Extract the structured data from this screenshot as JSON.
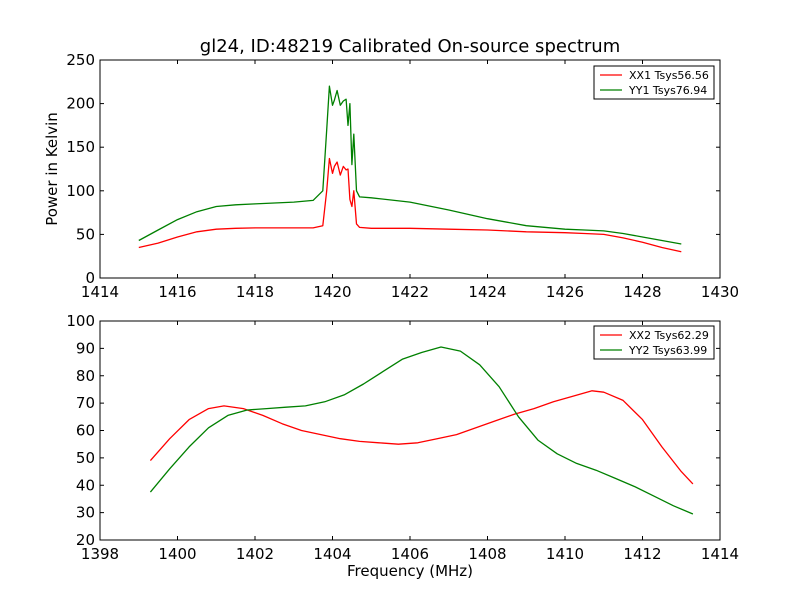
{
  "chart_data": [
    {
      "type": "line",
      "title": "gl24, ID:48219 Calibrated On-source spectrum",
      "xlabel": "",
      "ylabel": "Power in Kelvin",
      "xlim": [
        1414,
        1430
      ],
      "ylim": [
        0,
        250
      ],
      "xticks": [
        "1414",
        "1416",
        "1418",
        "1420",
        "1422",
        "1424",
        "1426",
        "1428",
        "1430"
      ],
      "yticks": [
        "0",
        "50",
        "100",
        "150",
        "200",
        "250"
      ],
      "grid": false,
      "legend_position": "top-right",
      "series": [
        {
          "name": "XX1 Tsys56.56",
          "color": "#ff0000",
          "x": [
            1415.0,
            1415.5,
            1416.0,
            1416.5,
            1417.0,
            1417.5,
            1418.0,
            1418.5,
            1419.0,
            1419.5,
            1419.75,
            1419.85,
            1419.92,
            1420.0,
            1420.05,
            1420.12,
            1420.2,
            1420.28,
            1420.35,
            1420.4,
            1420.45,
            1420.5,
            1420.55,
            1420.62,
            1420.7,
            1421.0,
            1422.0,
            1423.0,
            1424.0,
            1425.0,
            1426.0,
            1426.5,
            1427.0,
            1427.5,
            1428.0,
            1428.5,
            1429.0
          ],
          "y": [
            35,
            40,
            47,
            53,
            56,
            57,
            57.5,
            57.5,
            57.5,
            57.5,
            60,
            100,
            137,
            120,
            128,
            133,
            118,
            128,
            124,
            125,
            90,
            82,
            100,
            62,
            58,
            57,
            57,
            56,
            55,
            53,
            52,
            51,
            50,
            46,
            41,
            35,
            30
          ]
        },
        {
          "name": "YY1 Tsys76.94",
          "color": "#008000",
          "x": [
            1415.0,
            1415.5,
            1416.0,
            1416.5,
            1417.0,
            1417.5,
            1418.0,
            1418.5,
            1419.0,
            1419.5,
            1419.75,
            1419.85,
            1419.92,
            1420.0,
            1420.05,
            1420.12,
            1420.2,
            1420.28,
            1420.35,
            1420.4,
            1420.45,
            1420.5,
            1420.55,
            1420.62,
            1420.7,
            1421.0,
            1422.0,
            1423.0,
            1424.0,
            1425.0,
            1426.0,
            1426.5,
            1427.0,
            1427.5,
            1428.0,
            1428.5,
            1429.0
          ],
          "y": [
            43,
            55,
            67,
            76,
            82,
            84,
            85,
            86,
            87,
            89,
            100,
            170,
            220,
            198,
            204,
            215,
            198,
            203,
            205,
            175,
            200,
            130,
            165,
            100,
            93,
            92,
            87,
            78,
            68,
            60,
            56,
            55,
            54,
            51,
            47,
            43,
            39
          ]
        }
      ]
    },
    {
      "type": "line",
      "title": "",
      "xlabel": "Frequency (MHz)",
      "ylabel": "",
      "xlim": [
        1398,
        1414
      ],
      "ylim": [
        20,
        100
      ],
      "xticks": [
        "1398",
        "1400",
        "1402",
        "1404",
        "1406",
        "1408",
        "1410",
        "1412",
        "1414"
      ],
      "yticks": [
        "20",
        "30",
        "40",
        "50",
        "60",
        "70",
        "80",
        "90",
        "100"
      ],
      "grid": false,
      "legend_position": "top-right",
      "series": [
        {
          "name": "XX2 Tsys62.29",
          "color": "#ff0000",
          "x": [
            1399.3,
            1399.8,
            1400.3,
            1400.8,
            1401.2,
            1401.7,
            1402.2,
            1402.7,
            1403.2,
            1403.7,
            1404.2,
            1404.7,
            1405.2,
            1405.7,
            1406.2,
            1406.7,
            1407.2,
            1407.7,
            1408.2,
            1408.7,
            1409.2,
            1409.7,
            1410.2,
            1410.7,
            1411.0,
            1411.5,
            1412.0,
            1412.5,
            1413.0,
            1413.3
          ],
          "y": [
            49,
            57,
            64,
            68,
            69,
            68,
            65.5,
            62.5,
            60,
            58.5,
            57,
            56,
            55.5,
            55,
            55.5,
            57,
            58.5,
            61,
            63.5,
            66,
            68,
            70.5,
            72.5,
            74.5,
            74,
            71,
            64,
            54,
            45,
            40.5
          ]
        },
        {
          "name": "YY2 Tsys63.99",
          "color": "#008000",
          "x": [
            1399.3,
            1399.8,
            1400.3,
            1400.8,
            1401.3,
            1401.8,
            1402.3,
            1402.8,
            1403.3,
            1403.8,
            1404.3,
            1404.8,
            1405.3,
            1405.8,
            1406.3,
            1406.8,
            1407.3,
            1407.8,
            1408.3,
            1408.8,
            1409.3,
            1409.8,
            1410.3,
            1410.8,
            1411.3,
            1411.8,
            1412.3,
            1412.8,
            1413.3
          ],
          "y": [
            37.5,
            46,
            54,
            61,
            65.5,
            67.5,
            68,
            68.5,
            69,
            70.5,
            73,
            77,
            81.5,
            86,
            88.5,
            90.5,
            89,
            84,
            76,
            65,
            56.5,
            51.5,
            48,
            45.5,
            42.5,
            39.5,
            36,
            32.5,
            29.5
          ]
        }
      ]
    }
  ]
}
